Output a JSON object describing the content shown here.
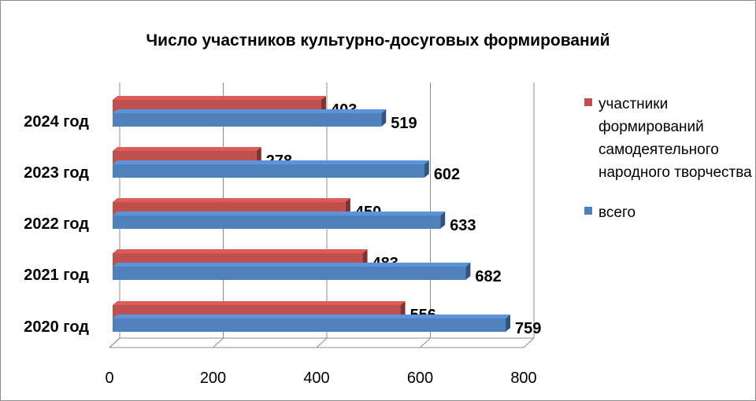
{
  "chart_data": {
    "type": "bar",
    "orientation": "horizontal",
    "title": "Число участников культурно-досуговых формирований",
    "categories": [
      "2024 год",
      "2023 год",
      "2022 год",
      "2021 год",
      "2020 год"
    ],
    "series": [
      {
        "name": "участники формирований самодеятельного народного творчества",
        "color": "#C0504D",
        "values": [
          403,
          278,
          450,
          483,
          556
        ],
        "labels": [
          "403",
          "278",
          "450",
          "483",
          "556"
        ]
      },
      {
        "name": "всего",
        "color": "#4F81BD",
        "values": [
          519,
          602,
          633,
          682,
          759
        ],
        "labels": [
          "519",
          "602",
          "633",
          "682",
          "759"
        ]
      }
    ],
    "xlim": [
      0,
      800
    ],
    "xticks": [
      0,
      200,
      400,
      600,
      800
    ],
    "xtick_labels": [
      "0",
      "200",
      "400",
      "600",
      "800"
    ],
    "grid": true,
    "legend_position": "right",
    "style": "3d"
  }
}
